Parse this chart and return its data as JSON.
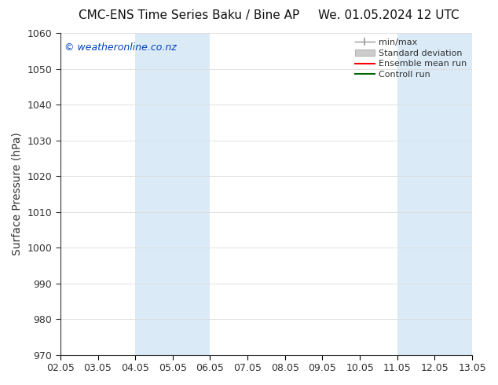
{
  "title_left": "CMC-ENS Time Series Baku / Bine AP",
  "title_right": "We. 01.05.2024 12 UTC",
  "ylabel": "Surface Pressure (hPa)",
  "xlabel_ticks": [
    "02.05",
    "03.05",
    "04.05",
    "05.05",
    "06.05",
    "07.05",
    "08.05",
    "09.05",
    "10.05",
    "11.05",
    "12.05",
    "13.05"
  ],
  "ylim": [
    970,
    1060
  ],
  "yticks": [
    970,
    980,
    990,
    1000,
    1010,
    1020,
    1030,
    1040,
    1050,
    1060
  ],
  "n_xticks": 12,
  "shaded_regions": [
    {
      "xmin": 2,
      "xmax": 4,
      "color": "#daeaf7"
    },
    {
      "xmin": 9,
      "xmax": 11,
      "color": "#daeaf7"
    }
  ],
  "watermark_text": "© weatheronline.co.nz",
  "watermark_color": "#0044bb",
  "legend_entries": [
    {
      "label": "min/max",
      "color": "#999999",
      "type": "minmax"
    },
    {
      "label": "Standard deviation",
      "color": "#cccccc",
      "type": "patch"
    },
    {
      "label": "Ensemble mean run",
      "color": "#ff0000",
      "type": "line"
    },
    {
      "label": "Controll run",
      "color": "#006600",
      "type": "line"
    }
  ],
  "bg_color": "#ffffff",
  "spine_color": "#333333",
  "tick_color": "#333333",
  "grid_color": "#dddddd",
  "title_fontsize": 11,
  "ylabel_fontsize": 10,
  "tick_fontsize": 9,
  "watermark_fontsize": 9,
  "legend_fontsize": 8
}
